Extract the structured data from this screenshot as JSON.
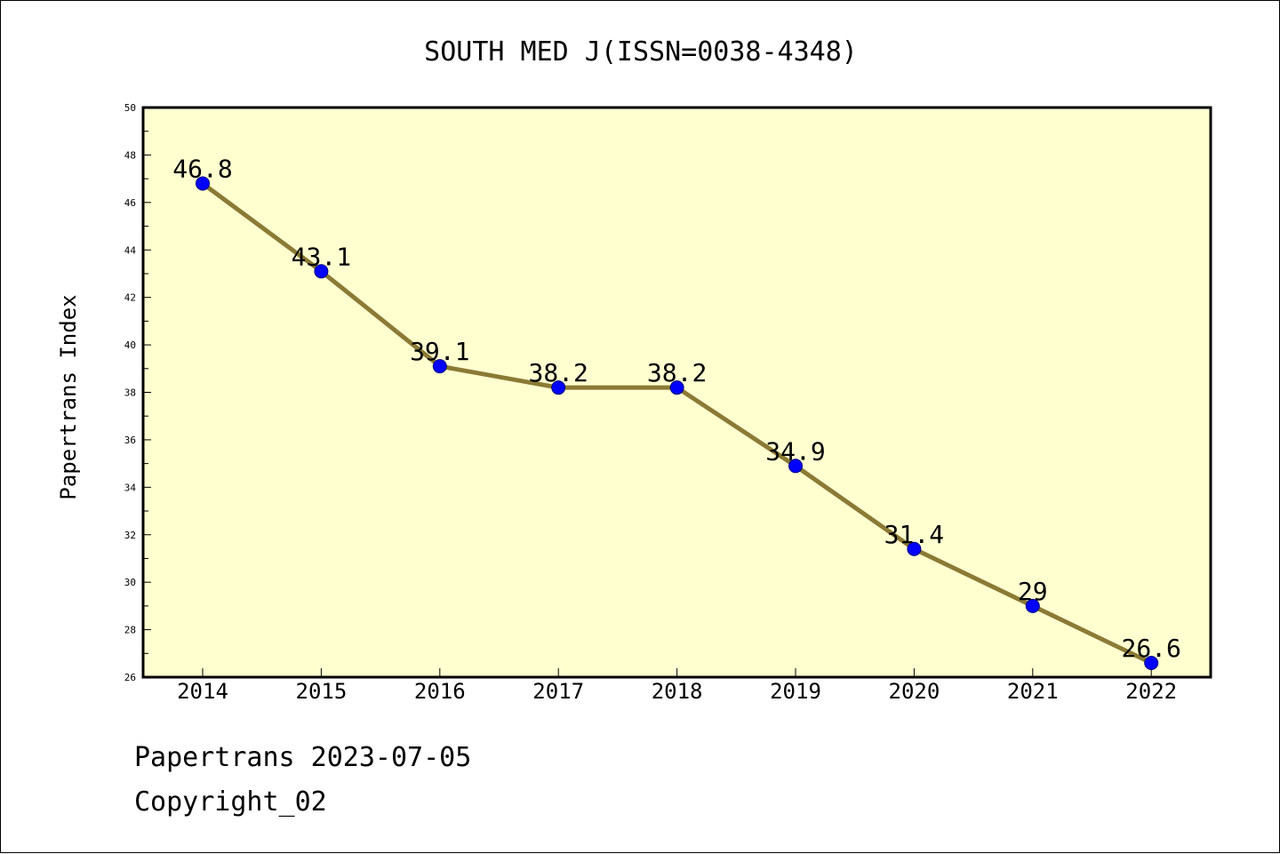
{
  "chart_data": {
    "type": "line",
    "title": "SOUTH MED J(ISSN=0038-4348)",
    "xlabel": "",
    "ylabel": "Papertrans Index",
    "categories": [
      "2014",
      "2015",
      "2016",
      "2017",
      "2018",
      "2019",
      "2020",
      "2021",
      "2022"
    ],
    "series": [
      {
        "values": [
          46.8,
          43.1,
          39.1,
          38.2,
          38.2,
          34.9,
          31.4,
          29,
          26.6
        ],
        "labels": [
          "46.8",
          "43.1",
          "39.1",
          "38.2",
          "38.2",
          "34.9",
          "31.4",
          "29",
          "26.6"
        ]
      }
    ],
    "ylim": [
      26,
      50
    ],
    "yticks": [
      "26",
      "28",
      "30",
      "32",
      "34",
      "36",
      "38",
      "40",
      "42",
      "44",
      "46",
      "48",
      "50"
    ],
    "grid": false,
    "legend": "none",
    "colors": {
      "plot_background": "#ffffd0",
      "line": "#8b7a35",
      "marker": "#0000ff",
      "marker_edge": "#000080"
    }
  },
  "footer": {
    "line1": "Papertrans 2023-07-05",
    "line2": "Copyright_02"
  }
}
